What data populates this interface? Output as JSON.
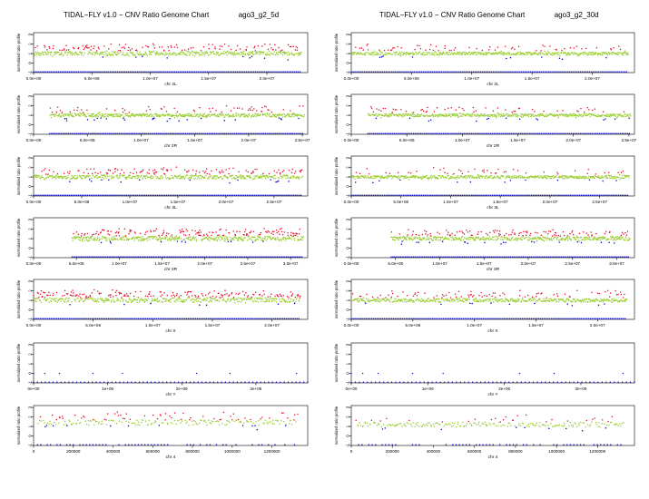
{
  "headers": [
    {
      "app": "TIDAL−FLY v1.0 −  CNV Ratio Genome Chart",
      "sample": "ago3_g2_5d"
    },
    {
      "app": "TIDAL−FLY v1.0 −  CNV Ratio Genome Chart",
      "sample": "ago3_g2_30d"
    }
  ],
  "colors": {
    "high": "#e8112d",
    "normal": "#9acd32",
    "low": "#0000cc",
    "axis": "#000000"
  },
  "chart_data": [
    {
      "type": "scatter",
      "sample": "ago3_g2_5d",
      "xlabel": "chr 2L",
      "ylabel": "normalized ratio profile",
      "xlim": [
        0,
        23500000
      ],
      "ylim": [
        -1,
        3.2
      ],
      "x_ticks": [
        0,
        5000000,
        10000000,
        15000000,
        20000000
      ],
      "x_tick_labels": [
        "0.0e+00",
        "5.0e+06",
        "1.0e+07",
        "1.5e+07",
        "2.0e+07"
      ],
      "y_ticks": [
        -1,
        0,
        1,
        2,
        3
      ],
      "y_tick_labels": [
        "-1",
        "0",
        "1",
        "2",
        "3"
      ],
      "data_range": [
        0,
        23000000
      ],
      "baseline": 1.0,
      "noise": 0.2,
      "spikes": 0.35
    },
    {
      "type": "scatter",
      "sample": "ago3_g2_30d",
      "xlabel": "chr 2L",
      "ylabel": "normalized ratio profile",
      "xlim": [
        0,
        23500000
      ],
      "ylim": [
        -1,
        3.2
      ],
      "x_ticks": [
        0,
        5000000,
        10000000,
        15000000,
        20000000
      ],
      "x_tick_labels": [
        "0.0e+00",
        "5.0e+06",
        "1.0e+07",
        "1.5e+07",
        "2.0e+07"
      ],
      "y_ticks": [
        -1,
        0,
        1,
        2,
        3
      ],
      "y_tick_labels": [
        "-1",
        "0",
        "1",
        "2",
        "3"
      ],
      "data_range": [
        0,
        23000000
      ],
      "baseline": 1.0,
      "noise": 0.15,
      "spikes": 0.18
    },
    {
      "type": "scatter",
      "sample": "ago3_g2_5d",
      "xlabel": "chr 2R",
      "ylabel": "normalized ratio profile",
      "xlim": [
        0,
        25500000
      ],
      "ylim": [
        -1,
        3.2
      ],
      "x_ticks": [
        0,
        5000000,
        10000000,
        15000000,
        20000000,
        25000000
      ],
      "x_tick_labels": [
        "0.0e+00",
        "5.0e+06",
        "1.0e+07",
        "1.5e+07",
        "2.0e+07",
        "2.5e+07"
      ],
      "y_ticks": [
        -1,
        0,
        1,
        2,
        3
      ],
      "y_tick_labels": [
        "-1",
        "0",
        "1",
        "2",
        "3"
      ],
      "data_range": [
        1500000,
        25200000
      ],
      "baseline": 1.0,
      "noise": 0.18,
      "spikes": 0.2
    },
    {
      "type": "scatter",
      "sample": "ago3_g2_30d",
      "xlabel": "chr 2R",
      "ylabel": "normalized ratio profile",
      "xlim": [
        0,
        25500000
      ],
      "ylim": [
        -1,
        3.2
      ],
      "x_ticks": [
        0,
        5000000,
        10000000,
        15000000,
        20000000,
        25000000
      ],
      "x_tick_labels": [
        "0.0e+00",
        "5.0e+06",
        "1.0e+07",
        "1.5e+07",
        "2.0e+07",
        "2.5e+07"
      ],
      "y_ticks": [
        -1,
        0,
        1,
        2,
        3
      ],
      "y_tick_labels": [
        "-1",
        "0",
        "1",
        "2",
        "3"
      ],
      "data_range": [
        1500000,
        25200000
      ],
      "baseline": 1.0,
      "noise": 0.15,
      "spikes": 0.15
    },
    {
      "type": "scatter",
      "sample": "ago3_g2_5d",
      "xlabel": "chr 3L",
      "ylabel": "normalized ratio profile",
      "xlim": [
        0,
        28500000
      ],
      "ylim": [
        -1,
        3.2
      ],
      "x_ticks": [
        0,
        5000000,
        10000000,
        15000000,
        20000000,
        25000000
      ],
      "x_tick_labels": [
        "0.0e+00",
        "5.0e+06",
        "1.0e+07",
        "1.5e+07",
        "2.0e+07",
        "2.5e+07"
      ],
      "y_ticks": [
        -1,
        0,
        1,
        2,
        3
      ],
      "y_tick_labels": [
        "-1",
        "0",
        "1",
        "2",
        "3"
      ],
      "data_range": [
        0,
        28000000
      ],
      "baseline": 1.0,
      "noise": 0.2,
      "spikes": 0.25
    },
    {
      "type": "scatter",
      "sample": "ago3_g2_30d",
      "xlabel": "chr 3L",
      "ylabel": "normalized ratio profile",
      "xlim": [
        0,
        28500000
      ],
      "ylim": [
        -1,
        3.2
      ],
      "x_ticks": [
        0,
        5000000,
        10000000,
        15000000,
        20000000,
        25000000
      ],
      "x_tick_labels": [
        "0.0e+00",
        "5.0e+06",
        "1.0e+07",
        "1.5e+07",
        "2.0e+07",
        "2.5e+07"
      ],
      "y_ticks": [
        -1,
        0,
        1,
        2,
        3
      ],
      "y_tick_labels": [
        "-1",
        "0",
        "1",
        "2",
        "3"
      ],
      "data_range": [
        0,
        28000000
      ],
      "baseline": 1.0,
      "noise": 0.15,
      "spikes": 0.12
    },
    {
      "type": "scatter",
      "sample": "ago3_g2_5d",
      "xlabel": "chr 3R",
      "ylabel": "normalized ratio profile",
      "xlim": [
        0,
        32000000
      ],
      "ylim": [
        -1,
        3.2
      ],
      "x_ticks": [
        0,
        5000000,
        10000000,
        15000000,
        20000000,
        25000000,
        30000000
      ],
      "x_tick_labels": [
        "0.0e+00",
        "5.0e+06",
        "1.0e+07",
        "1.5e+07",
        "2.0e+07",
        "2.5e+07",
        "3.0e+07"
      ],
      "y_ticks": [
        -1,
        0,
        1,
        2,
        3
      ],
      "y_tick_labels": [
        "-1",
        "0",
        "1",
        "2",
        "3"
      ],
      "data_range": [
        4500000,
        31500000
      ],
      "baseline": 1.0,
      "noise": 0.22,
      "spikes": 0.4
    },
    {
      "type": "scatter",
      "sample": "ago3_g2_30d",
      "xlabel": "chr 3R",
      "ylabel": "normalized ratio profile",
      "xlim": [
        0,
        32000000
      ],
      "ylim": [
        -1,
        3.2
      ],
      "x_ticks": [
        0,
        5000000,
        10000000,
        15000000,
        20000000,
        25000000,
        30000000
      ],
      "x_tick_labels": [
        "0.0e+00",
        "5.0e+06",
        "1.0e+07",
        "1.5e+07",
        "2.0e+07",
        "2.5e+07",
        "3.0e+07"
      ],
      "y_ticks": [
        -1,
        0,
        1,
        2,
        3
      ],
      "y_tick_labels": [
        "-1",
        "0",
        "1",
        "2",
        "3"
      ],
      "data_range": [
        4500000,
        31500000
      ],
      "baseline": 1.0,
      "noise": 0.18,
      "spikes": 0.3
    },
    {
      "type": "scatter",
      "sample": "ago3_g2_5d",
      "xlabel": "chr X",
      "ylabel": "normalized ratio profile",
      "xlim": [
        0,
        23000000
      ],
      "ylim": [
        -1,
        3.2
      ],
      "x_ticks": [
        0,
        5000000,
        10000000,
        15000000,
        20000000
      ],
      "x_tick_labels": [
        "0.0e+00",
        "5.0e+06",
        "1.0e+07",
        "1.5e+07",
        "2.0e+07"
      ],
      "y_ticks": [
        -1,
        0,
        1,
        2,
        3
      ],
      "y_tick_labels": [
        "-1",
        "0",
        "1",
        "2",
        "3"
      ],
      "data_range": [
        0,
        22400000
      ],
      "baseline": 1.0,
      "noise": 0.22,
      "spikes": 0.5
    },
    {
      "type": "scatter",
      "sample": "ago3_g2_30d",
      "xlabel": "chr X",
      "ylabel": "normalized ratio profile",
      "xlim": [
        0,
        23000000
      ],
      "ylim": [
        -1,
        3.2
      ],
      "x_ticks": [
        0,
        5000000,
        10000000,
        15000000,
        20000000
      ],
      "x_tick_labels": [
        "0.0e+00",
        "5.0e+06",
        "1.0e+07",
        "1.5e+07",
        "2.0e+07"
      ],
      "y_ticks": [
        -1,
        0,
        1,
        2,
        3
      ],
      "y_tick_labels": [
        "-1",
        "0",
        "1",
        "2",
        "3"
      ],
      "data_range": [
        0,
        22400000
      ],
      "baseline": 1.0,
      "noise": 0.18,
      "spikes": 0.2
    },
    {
      "type": "scatter",
      "sample": "ago3_g2_5d",
      "xlabel": "chr Y",
      "ylabel": "normalized ratio profile",
      "xlim": [
        0,
        3700000
      ],
      "ylim": [
        -1,
        3.2
      ],
      "x_ticks": [
        0,
        1000000,
        2000000,
        3000000
      ],
      "x_tick_labels": [
        "0e+00",
        "1e+06",
        "2e+06",
        "3e+06"
      ],
      "y_ticks": [
        -1,
        0,
        1,
        2,
        3
      ],
      "y_tick_labels": [
        "-1",
        "0",
        "1",
        "2",
        "3"
      ],
      "points_y0": [
        0,
        150000,
        350000,
        800000,
        1200000,
        2200000,
        2650000,
        3550000
      ]
    },
    {
      "type": "scatter",
      "sample": "ago3_g2_30d",
      "xlabel": "chr Y",
      "ylabel": "normalized ratio profile",
      "xlim": [
        0,
        3700000
      ],
      "ylim": [
        -1,
        3.2
      ],
      "x_ticks": [
        0,
        1000000,
        2000000,
        3000000
      ],
      "x_tick_labels": [
        "0e+00",
        "1e+06",
        "2e+06",
        "3e+06"
      ],
      "y_ticks": [
        -1,
        0,
        1,
        2,
        3
      ],
      "y_tick_labels": [
        "-1",
        "0",
        "1",
        "2",
        "3"
      ],
      "points_y0": [
        0,
        150000,
        350000,
        800000,
        1200000,
        2200000,
        2650000,
        3550000
      ]
    },
    {
      "type": "scatter",
      "sample": "ago3_g2_5d",
      "xlabel": "chr 4",
      "ylabel": "normalized ratio profile",
      "xlim": [
        0,
        1380000
      ],
      "ylim": [
        -1,
        3.2
      ],
      "x_ticks": [
        0,
        200000,
        400000,
        600000,
        800000,
        1000000,
        1200000
      ],
      "x_tick_labels": [
        "0",
        "200000",
        "400000",
        "600000",
        "800000",
        "1000000",
        "1200000"
      ],
      "y_ticks": [
        -1,
        0,
        1,
        2,
        3
      ],
      "y_tick_labels": [
        "-1",
        "0",
        "1",
        "2",
        "3"
      ],
      "data_range": [
        20000,
        1330000
      ],
      "baseline": 1.4,
      "noise": 0.35,
      "spikes": 0.3,
      "sparse": true
    },
    {
      "type": "scatter",
      "sample": "ago3_g2_30d",
      "xlabel": "chr 4",
      "ylabel": "normalized ratio profile",
      "xlim": [
        0,
        1380000
      ],
      "ylim": [
        -1,
        3.2
      ],
      "x_ticks": [
        0,
        200000,
        400000,
        600000,
        800000,
        1000000,
        1200000
      ],
      "x_tick_labels": [
        "0",
        "200000",
        "400000",
        "600000",
        "800000",
        "1000000",
        "1200000"
      ],
      "y_ticks": [
        -1,
        0,
        1,
        2,
        3
      ],
      "y_tick_labels": [
        "-1",
        "0",
        "1",
        "2",
        "3"
      ],
      "data_range": [
        20000,
        1330000
      ],
      "baseline": 1.2,
      "noise": 0.25,
      "spikes": 0.2,
      "sparse": true
    }
  ]
}
